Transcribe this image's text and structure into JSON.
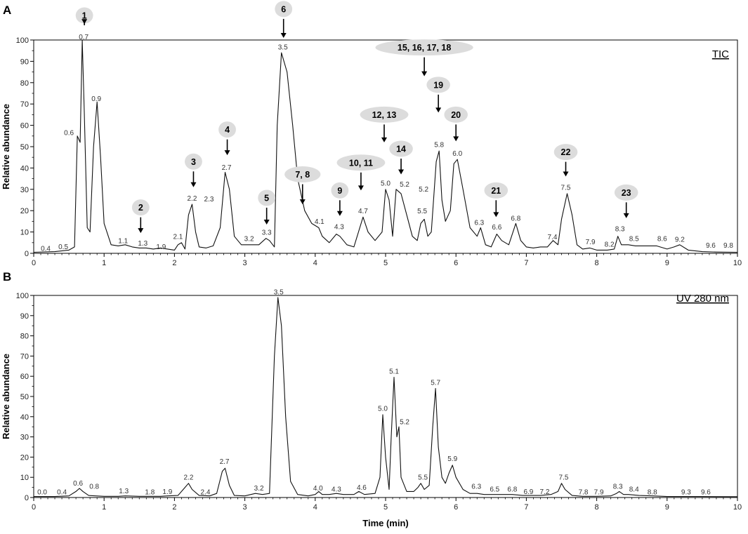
{
  "chart_data": [
    {
      "panel": "A",
      "type": "line",
      "title": "TIC",
      "xlabel": "",
      "ylabel": "Relative abundance",
      "xlim": [
        0,
        10
      ],
      "ylim": [
        0,
        100
      ],
      "xticks": [
        "0",
        "1",
        "2",
        "3",
        "4",
        "5",
        "6",
        "7",
        "8",
        "9",
        "10"
      ],
      "yticks": [
        "0",
        "10",
        "20",
        "30",
        "40",
        "50",
        "60",
        "70",
        "80",
        "90",
        "100"
      ],
      "points": [
        [
          0,
          0.5
        ],
        [
          0.3,
          0.8
        ],
        [
          0.5,
          1.5
        ],
        [
          0.58,
          3
        ],
        [
          0.62,
          55
        ],
        [
          0.66,
          52
        ],
        [
          0.69,
          100
        ],
        [
          0.72,
          65
        ],
        [
          0.76,
          12
        ],
        [
          0.8,
          10
        ],
        [
          0.85,
          50
        ],
        [
          0.9,
          71
        ],
        [
          0.95,
          45
        ],
        [
          1.0,
          14
        ],
        [
          1.1,
          4
        ],
        [
          1.2,
          3.5
        ],
        [
          1.3,
          4
        ],
        [
          1.4,
          3
        ],
        [
          1.5,
          2.5
        ],
        [
          1.6,
          2.5
        ],
        [
          1.7,
          2
        ],
        [
          1.8,
          2.5
        ],
        [
          1.9,
          2
        ],
        [
          2.0,
          1.5
        ],
        [
          2.05,
          4
        ],
        [
          2.1,
          5
        ],
        [
          2.15,
          2
        ],
        [
          2.2,
          18
        ],
        [
          2.25,
          23
        ],
        [
          2.3,
          10
        ],
        [
          2.35,
          3
        ],
        [
          2.45,
          2.5
        ],
        [
          2.55,
          3.5
        ],
        [
          2.65,
          12
        ],
        [
          2.72,
          38
        ],
        [
          2.78,
          30
        ],
        [
          2.85,
          8
        ],
        [
          2.95,
          4
        ],
        [
          3.1,
          4
        ],
        [
          3.2,
          4
        ],
        [
          3.3,
          7
        ],
        [
          3.35,
          6
        ],
        [
          3.42,
          3
        ],
        [
          3.46,
          60
        ],
        [
          3.52,
          94
        ],
        [
          3.6,
          85
        ],
        [
          3.68,
          60
        ],
        [
          3.75,
          35
        ],
        [
          3.85,
          20
        ],
        [
          3.95,
          14
        ],
        [
          4.05,
          12
        ],
        [
          4.1,
          8
        ],
        [
          4.2,
          5
        ],
        [
          4.3,
          9
        ],
        [
          4.35,
          8
        ],
        [
          4.45,
          4
        ],
        [
          4.55,
          3
        ],
        [
          4.68,
          17
        ],
        [
          4.75,
          10
        ],
        [
          4.85,
          6
        ],
        [
          4.95,
          10
        ],
        [
          5.0,
          30
        ],
        [
          5.05,
          25
        ],
        [
          5.1,
          8
        ],
        [
          5.15,
          30
        ],
        [
          5.22,
          28
        ],
        [
          5.3,
          18
        ],
        [
          5.38,
          8
        ],
        [
          5.45,
          6
        ],
        [
          5.5,
          14
        ],
        [
          5.55,
          16
        ],
        [
          5.6,
          8
        ],
        [
          5.65,
          10
        ],
        [
          5.72,
          43
        ],
        [
          5.76,
          48
        ],
        [
          5.8,
          25
        ],
        [
          5.85,
          15
        ],
        [
          5.92,
          20
        ],
        [
          5.97,
          42
        ],
        [
          6.02,
          44
        ],
        [
          6.1,
          30
        ],
        [
          6.2,
          12
        ],
        [
          6.3,
          8
        ],
        [
          6.35,
          12
        ],
        [
          6.42,
          4
        ],
        [
          6.5,
          3
        ],
        [
          6.58,
          9
        ],
        [
          6.65,
          6
        ],
        [
          6.75,
          4
        ],
        [
          6.85,
          14
        ],
        [
          6.92,
          6
        ],
        [
          7.0,
          3
        ],
        [
          7.1,
          2.5
        ],
        [
          7.2,
          3
        ],
        [
          7.3,
          3
        ],
        [
          7.38,
          6
        ],
        [
          7.45,
          4
        ],
        [
          7.5,
          16
        ],
        [
          7.58,
          28
        ],
        [
          7.65,
          18
        ],
        [
          7.72,
          4
        ],
        [
          7.8,
          2
        ],
        [
          7.9,
          2.5
        ],
        [
          8.0,
          1.5
        ],
        [
          8.15,
          1.5
        ],
        [
          8.25,
          2
        ],
        [
          8.3,
          8
        ],
        [
          8.35,
          4
        ],
        [
          8.45,
          4
        ],
        [
          8.55,
          3.5
        ],
        [
          8.7,
          3.5
        ],
        [
          8.85,
          3.5
        ],
        [
          9.0,
          2
        ],
        [
          9.1,
          3
        ],
        [
          9.18,
          4
        ],
        [
          9.3,
          1.5
        ],
        [
          9.5,
          0.8
        ],
        [
          9.7,
          0.6
        ],
        [
          10,
          0.5
        ]
      ],
      "peak_labels": [
        {
          "t": "0.4",
          "x": 0.17,
          "y": 1.2
        },
        {
          "t": "0.5",
          "x": 0.42,
          "y": 2
        },
        {
          "t": "0.6",
          "x": 0.5,
          "y": 55.5
        },
        {
          "t": "0.7",
          "x": 0.71,
          "y": 100.3
        },
        {
          "t": "0.9",
          "x": 0.89,
          "y": 71.3
        },
        {
          "t": "1.1",
          "x": 1.27,
          "y": 4.8
        },
        {
          "t": "1.3",
          "x": 1.55,
          "y": 3.6
        },
        {
          "t": "1.9",
          "x": 1.81,
          "y": 2
        },
        {
          "t": "2.1",
          "x": 2.05,
          "y": 6.8
        },
        {
          "t": "2.2",
          "x": 2.25,
          "y": 24.6
        },
        {
          "t": "2.3",
          "x": 2.49,
          "y": 24.3
        },
        {
          "t": "2.7",
          "x": 2.74,
          "y": 39.2
        },
        {
          "t": "3.2",
          "x": 3.06,
          "y": 5.8
        },
        {
          "t": "3.3",
          "x": 3.31,
          "y": 8.7
        },
        {
          "t": "3.5",
          "x": 3.54,
          "y": 95.6
        },
        {
          "t": "4.1",
          "x": 4.06,
          "y": 13.8
        },
        {
          "t": "4.3",
          "x": 4.34,
          "y": 11.3
        },
        {
          "t": "4.7",
          "x": 4.68,
          "y": 18.8
        },
        {
          "t": "5.0",
          "x": 5.0,
          "y": 31.7
        },
        {
          "t": "5.2",
          "x": 5.27,
          "y": 31.3
        },
        {
          "t": "5.2",
          "x": 5.54,
          "y": 28.9
        },
        {
          "t": "5.5",
          "x": 5.52,
          "y": 18.8
        },
        {
          "t": "5.8",
          "x": 5.76,
          "y": 49.8
        },
        {
          "t": "6.0",
          "x": 6.02,
          "y": 45.8
        },
        {
          "t": "6.3",
          "x": 6.33,
          "y": 13.4
        },
        {
          "t": "6.6",
          "x": 6.58,
          "y": 11.2
        },
        {
          "t": "6.8",
          "x": 6.85,
          "y": 15.3
        },
        {
          "t": "7.4",
          "x": 7.37,
          "y": 6.6
        },
        {
          "t": "7.5",
          "x": 7.56,
          "y": 29.7
        },
        {
          "t": "7.9",
          "x": 7.91,
          "y": 4.3
        },
        {
          "t": "8.2",
          "x": 8.18,
          "y": 3.1
        },
        {
          "t": "8.3",
          "x": 8.33,
          "y": 10.4
        },
        {
          "t": "8.5",
          "x": 8.53,
          "y": 5.7
        },
        {
          "t": "8.6",
          "x": 8.93,
          "y": 5.7
        },
        {
          "t": "9.2",
          "x": 9.18,
          "y": 5.4
        },
        {
          "t": "9.6",
          "x": 9.62,
          "y": 2.6
        },
        {
          "t": "9.8",
          "x": 9.87,
          "y": 2.6
        }
      ],
      "annotations": [
        {
          "label": "1",
          "x": 0.72,
          "y": 111.5,
          "to": 107.5
        },
        {
          "label": "2",
          "x": 1.52,
          "y": 21.5,
          "to": 9.5
        },
        {
          "label": "3",
          "x": 2.27,
          "y": 43,
          "to": 31
        },
        {
          "label": "4",
          "x": 2.75,
          "y": 58,
          "to": 46
        },
        {
          "label": "5",
          "x": 3.31,
          "y": 26,
          "to": 13.5
        },
        {
          "label": "6",
          "x": 3.55,
          "y": 114.5,
          "to": 101
        },
        {
          "label": "7, 8",
          "x": 3.82,
          "y": 37,
          "to": 23
        },
        {
          "label": "9",
          "x": 4.35,
          "y": 29.5,
          "to": 17.5
        },
        {
          "label": "10, 11",
          "x": 4.65,
          "y": 42.5,
          "to": 29.5
        },
        {
          "label": "12, 13",
          "x": 4.98,
          "y": 65,
          "to": 52
        },
        {
          "label": "14",
          "x": 5.22,
          "y": 49,
          "to": 37
        },
        {
          "label": "15, 16, 17, 18",
          "x": 5.55,
          "y": 96.5,
          "to": 83
        },
        {
          "label": "19",
          "x": 5.75,
          "y": 79,
          "to": 66
        },
        {
          "label": "20",
          "x": 6.0,
          "y": 65,
          "to": 52.5
        },
        {
          "label": "21",
          "x": 6.57,
          "y": 29.5,
          "to": 17
        },
        {
          "label": "22",
          "x": 7.56,
          "y": 47.5,
          "to": 36
        },
        {
          "label": "23",
          "x": 8.42,
          "y": 28.5,
          "to": 16.5
        }
      ]
    },
    {
      "panel": "B",
      "type": "line",
      "title": "UV 280 nm",
      "xlabel": "Time (min)",
      "ylabel": "Relative abundance",
      "xlim": [
        0,
        10
      ],
      "ylim": [
        0,
        100
      ],
      "xticks": [
        "0",
        "1",
        "2",
        "3",
        "4",
        "5",
        "6",
        "7",
        "8",
        "9",
        "10"
      ],
      "yticks": [
        "0",
        "10",
        "20",
        "30",
        "40",
        "50",
        "60",
        "70",
        "80",
        "90",
        "100"
      ],
      "points": [
        [
          0,
          0.5
        ],
        [
          0.3,
          0.5
        ],
        [
          0.5,
          0.8
        ],
        [
          0.6,
          3
        ],
        [
          0.65,
          4.5
        ],
        [
          0.7,
          3
        ],
        [
          0.78,
          1
        ],
        [
          1.0,
          0.6
        ],
        [
          1.2,
          0.6
        ],
        [
          1.3,
          0.8
        ],
        [
          1.5,
          0.6
        ],
        [
          1.8,
          0.6
        ],
        [
          1.9,
          0.8
        ],
        [
          2.05,
          1
        ],
        [
          2.15,
          5
        ],
        [
          2.2,
          7
        ],
        [
          2.25,
          4
        ],
        [
          2.35,
          1
        ],
        [
          2.5,
          0.8
        ],
        [
          2.6,
          2
        ],
        [
          2.68,
          13
        ],
        [
          2.72,
          14.5
        ],
        [
          2.78,
          6
        ],
        [
          2.85,
          1
        ],
        [
          3.0,
          0.8
        ],
        [
          3.15,
          2
        ],
        [
          3.25,
          1.5
        ],
        [
          3.35,
          2
        ],
        [
          3.42,
          70
        ],
        [
          3.47,
          99
        ],
        [
          3.52,
          85
        ],
        [
          3.58,
          40
        ],
        [
          3.65,
          8
        ],
        [
          3.75,
          1.5
        ],
        [
          3.9,
          0.8
        ],
        [
          4.0,
          1.5
        ],
        [
          4.05,
          3
        ],
        [
          4.1,
          1.5
        ],
        [
          4.2,
          1.5
        ],
        [
          4.3,
          2
        ],
        [
          4.4,
          1.5
        ],
        [
          4.55,
          1.5
        ],
        [
          4.62,
          3
        ],
        [
          4.7,
          1.5
        ],
        [
          4.85,
          2
        ],
        [
          4.92,
          10
        ],
        [
          4.96,
          41
        ],
        [
          5.0,
          20
        ],
        [
          5.05,
          4
        ],
        [
          5.08,
          30
        ],
        [
          5.12,
          59.5
        ],
        [
          5.16,
          30
        ],
        [
          5.19,
          35
        ],
        [
          5.22,
          10
        ],
        [
          5.3,
          3
        ],
        [
          5.4,
          3
        ],
        [
          5.46,
          5
        ],
        [
          5.5,
          7
        ],
        [
          5.55,
          4
        ],
        [
          5.62,
          6
        ],
        [
          5.67,
          35
        ],
        [
          5.71,
          54
        ],
        [
          5.75,
          25
        ],
        [
          5.8,
          10
        ],
        [
          5.85,
          7
        ],
        [
          5.9,
          12
        ],
        [
          5.95,
          16
        ],
        [
          6.0,
          10
        ],
        [
          6.1,
          4
        ],
        [
          6.2,
          2
        ],
        [
          6.3,
          2
        ],
        [
          6.4,
          1.5
        ],
        [
          6.55,
          1.5
        ],
        [
          6.7,
          1.5
        ],
        [
          6.8,
          1.5
        ],
        [
          6.95,
          1
        ],
        [
          7.2,
          1
        ],
        [
          7.35,
          1.5
        ],
        [
          7.45,
          3
        ],
        [
          7.5,
          7
        ],
        [
          7.55,
          4
        ],
        [
          7.65,
          1
        ],
        [
          7.8,
          0.6
        ],
        [
          8.0,
          0.6
        ],
        [
          8.2,
          0.8
        ],
        [
          8.28,
          2
        ],
        [
          8.32,
          3
        ],
        [
          8.38,
          1.5
        ],
        [
          8.45,
          1.5
        ],
        [
          8.6,
          1
        ],
        [
          8.8,
          0.8
        ],
        [
          9.0,
          0.5
        ],
        [
          9.5,
          0.5
        ],
        [
          10,
          0.4
        ]
      ],
      "peak_labels": [
        {
          "t": "0.0",
          "x": 0.12,
          "y": 1.5
        },
        {
          "t": "0.4",
          "x": 0.4,
          "y": 1.5
        },
        {
          "t": "0.6",
          "x": 0.63,
          "y": 5.9
        },
        {
          "t": "0.8",
          "x": 0.86,
          "y": 4.4
        },
        {
          "t": "1.3",
          "x": 1.28,
          "y": 2
        },
        {
          "t": "1.8",
          "x": 1.65,
          "y": 1.5
        },
        {
          "t": "1.9",
          "x": 1.9,
          "y": 1.8
        },
        {
          "t": "2.2",
          "x": 2.2,
          "y": 8.8
        },
        {
          "t": "2.4",
          "x": 2.44,
          "y": 1.5
        },
        {
          "t": "2.7",
          "x": 2.71,
          "y": 16.6
        },
        {
          "t": "3.2",
          "x": 3.2,
          "y": 3.4
        },
        {
          "t": "3.5",
          "x": 3.48,
          "y": 100.5
        },
        {
          "t": "4.0",
          "x": 4.04,
          "y": 3.4
        },
        {
          "t": "4.3",
          "x": 4.3,
          "y": 2.9
        },
        {
          "t": "4.6",
          "x": 4.66,
          "y": 3.9
        },
        {
          "t": "5.0",
          "x": 4.96,
          "y": 42.8
        },
        {
          "t": "5.1",
          "x": 5.12,
          "y": 61.3
        },
        {
          "t": "5.2",
          "x": 5.27,
          "y": 36.3
        },
        {
          "t": "5.5",
          "x": 5.53,
          "y": 8.8
        },
        {
          "t": "5.7",
          "x": 5.71,
          "y": 55.8
        },
        {
          "t": "5.9",
          "x": 5.95,
          "y": 18.1
        },
        {
          "t": "6.3",
          "x": 6.29,
          "y": 4.4
        },
        {
          "t": "6.5",
          "x": 6.55,
          "y": 2.9
        },
        {
          "t": "6.8",
          "x": 6.8,
          "y": 2.9
        },
        {
          "t": "6.9",
          "x": 7.03,
          "y": 1.8
        },
        {
          "t": "7.2",
          "x": 7.26,
          "y": 1.8
        },
        {
          "t": "7.5",
          "x": 7.53,
          "y": 8.8
        },
        {
          "t": "7.8",
          "x": 7.81,
          "y": 1.5
        },
        {
          "t": "7.9",
          "x": 8.03,
          "y": 1.5
        },
        {
          "t": "8.3",
          "x": 8.3,
          "y": 4.4
        },
        {
          "t": "8.4",
          "x": 8.53,
          "y": 2.9
        },
        {
          "t": "8.8",
          "x": 8.79,
          "y": 1.5
        },
        {
          "t": "9.3",
          "x": 9.27,
          "y": 1.5
        },
        {
          "t": "9.6",
          "x": 9.55,
          "y": 1.5
        }
      ],
      "annotations": []
    }
  ]
}
